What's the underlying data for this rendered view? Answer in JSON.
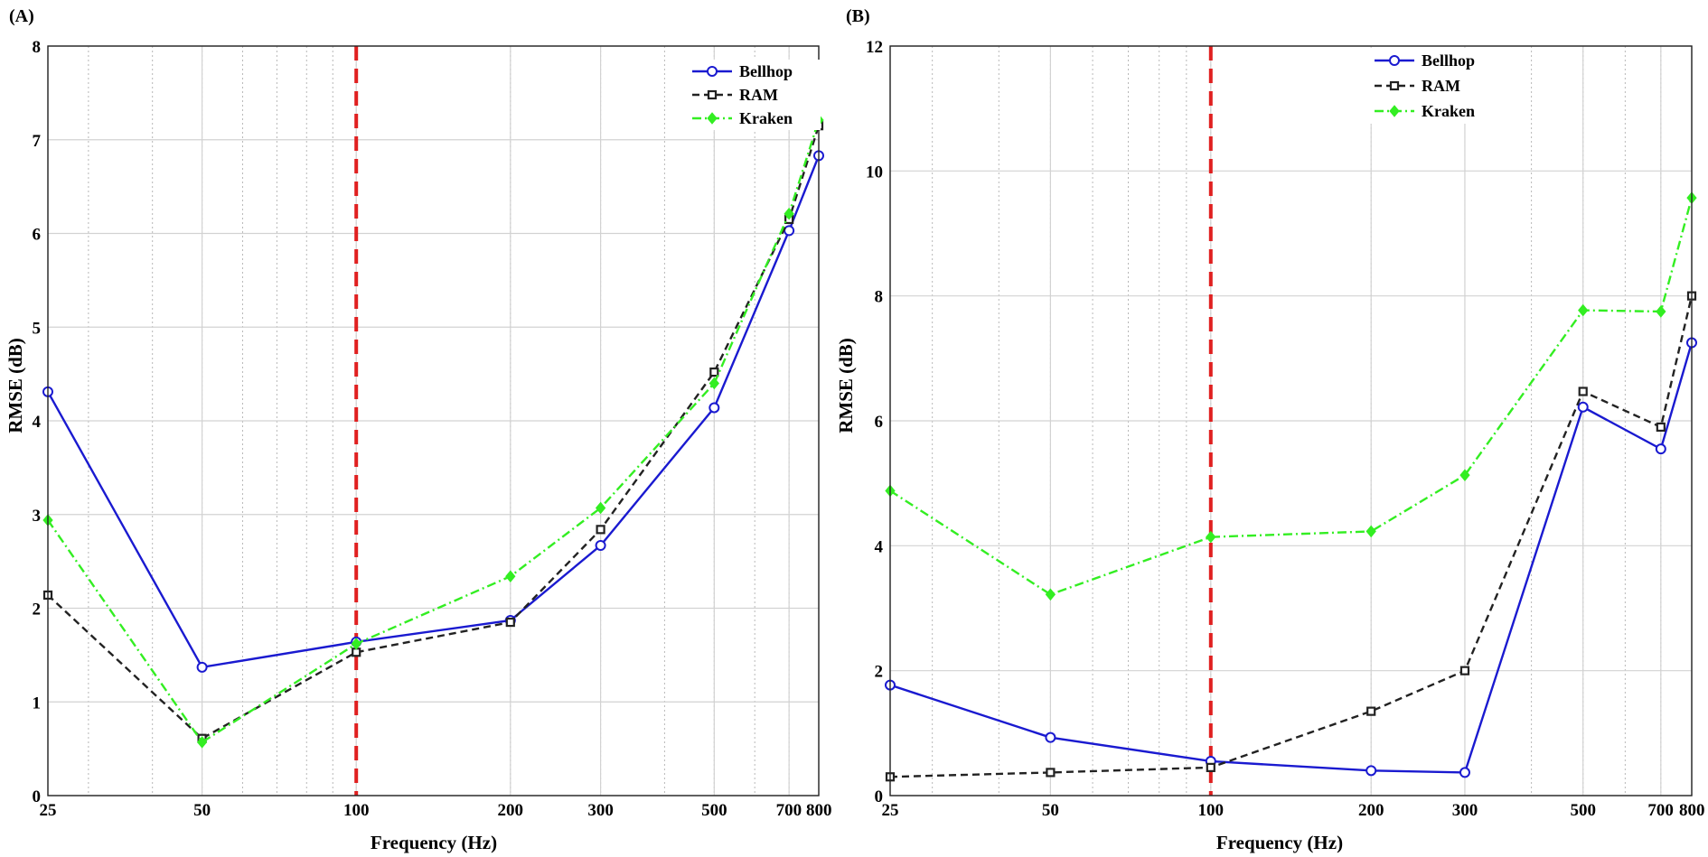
{
  "chart_data": [
    {
      "panel_label": "(A)",
      "type": "line",
      "xscale": "log",
      "x": [
        25,
        50,
        100,
        200,
        300,
        500,
        700,
        800
      ],
      "xticks": [
        "25",
        "50",
        "100",
        "200",
        "300",
        "500",
        "700",
        "800"
      ],
      "xlim": [
        25,
        800
      ],
      "ylim": [
        0,
        8
      ],
      "yticks": [
        "0",
        "1",
        "2",
        "3",
        "4",
        "5",
        "6",
        "7",
        "8"
      ],
      "xlabel": "Frequency (Hz)",
      "ylabel": "RMSE (dB)",
      "grid": true,
      "legend_position": "top-right",
      "reference_line": {
        "x": 100,
        "color": "#e02020",
        "style": "dashed"
      },
      "series": [
        {
          "name": "Bellhop",
          "color": "#1a1ad0",
          "marker": "circle",
          "style": "solid",
          "values": [
            4.31,
            1.37,
            1.64,
            1.87,
            2.67,
            4.14,
            6.03,
            6.83
          ]
        },
        {
          "name": "RAM",
          "color": "#222222",
          "marker": "square",
          "style": "dashed",
          "values": [
            2.14,
            0.61,
            1.53,
            1.85,
            2.84,
            4.52,
            6.15,
            7.15
          ]
        },
        {
          "name": "Kraken",
          "color": "#33ee22",
          "marker": "diamond",
          "style": "dashdot",
          "values": [
            2.94,
            0.57,
            1.62,
            2.34,
            3.07,
            4.4,
            6.21,
            7.21
          ]
        }
      ]
    },
    {
      "panel_label": "(B)",
      "type": "line",
      "xscale": "log",
      "x": [
        25,
        50,
        100,
        200,
        300,
        500,
        700,
        800
      ],
      "xticks": [
        "25",
        "50",
        "100",
        "200",
        "300",
        "500",
        "700",
        "800"
      ],
      "xlim": [
        25,
        800
      ],
      "ylim": [
        0,
        12
      ],
      "yticks": [
        "0",
        "2",
        "4",
        "6",
        "8",
        "10",
        "12"
      ],
      "xlabel": "Frequency (Hz)",
      "ylabel": "RMSE (dB)",
      "grid": true,
      "legend_position": "top-center",
      "reference_line": {
        "x": 100,
        "color": "#e02020",
        "style": "dashed"
      },
      "series": [
        {
          "name": "Bellhop",
          "color": "#1a1ad0",
          "marker": "circle",
          "style": "solid",
          "values": [
            1.77,
            0.93,
            0.55,
            0.4,
            0.37,
            6.22,
            5.55,
            7.25
          ]
        },
        {
          "name": "RAM",
          "color": "#222222",
          "marker": "square",
          "style": "dashed",
          "values": [
            0.3,
            0.37,
            0.45,
            1.35,
            2.0,
            6.47,
            5.9,
            8.0
          ]
        },
        {
          "name": "Kraken",
          "color": "#33ee22",
          "marker": "diamond",
          "style": "dashdot",
          "values": [
            4.88,
            3.22,
            4.14,
            4.23,
            5.13,
            7.77,
            7.75,
            9.57
          ]
        }
      ]
    }
  ]
}
